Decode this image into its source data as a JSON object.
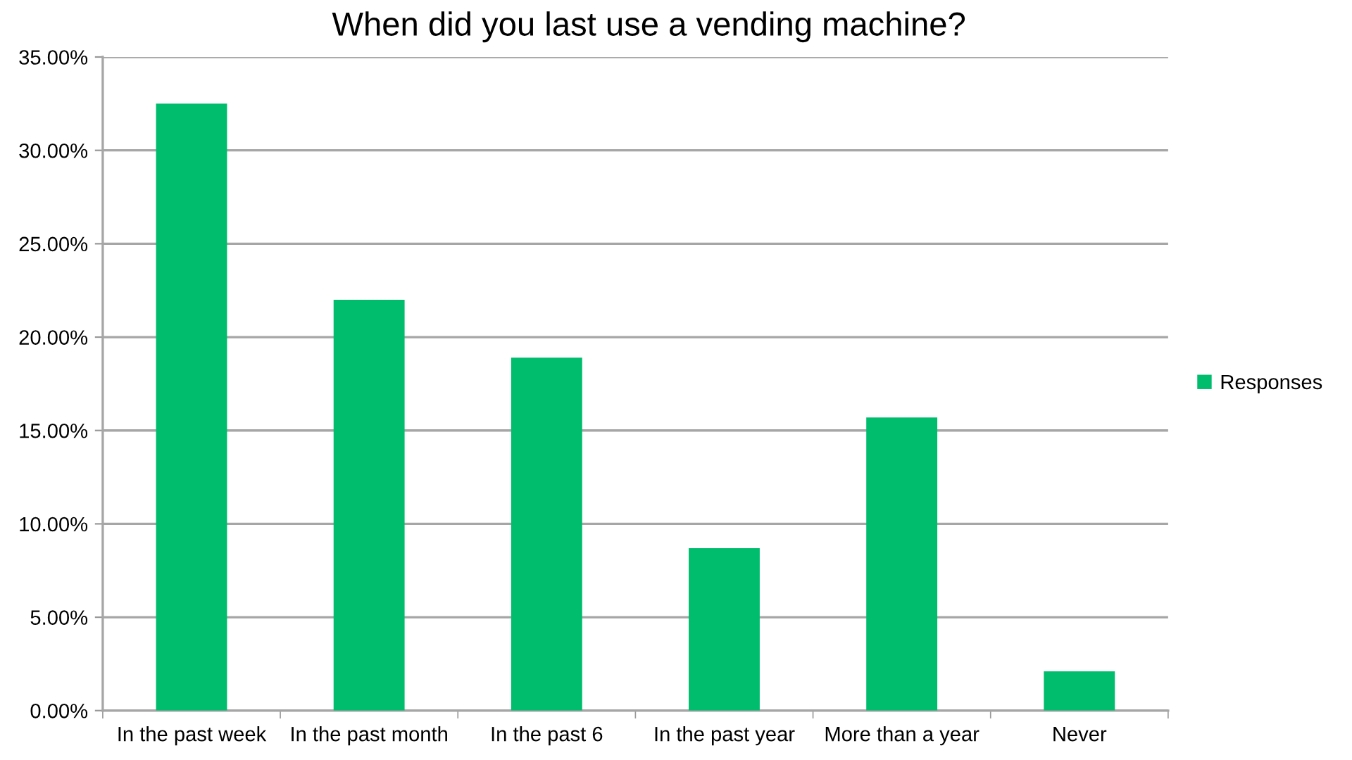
{
  "chart_data": {
    "type": "bar",
    "title": "When did you last use a vending machine?",
    "categories": [
      "In the past week",
      "In the past month",
      "In the past 6",
      "In the past year",
      "More than a year",
      "Never"
    ],
    "series": [
      {
        "name": "Responses",
        "color": "#00bd6e",
        "values": [
          32.5,
          22.0,
          18.9,
          8.7,
          15.7,
          2.1
        ]
      }
    ],
    "ylim": [
      0,
      35
    ],
    "yticks": [
      {
        "value": 0,
        "label": "0.00%"
      },
      {
        "value": 5,
        "label": "5.00%"
      },
      {
        "value": 10,
        "label": "10.00%"
      },
      {
        "value": 15,
        "label": "15.00%"
      },
      {
        "value": 20,
        "label": "20.00%"
      },
      {
        "value": 25,
        "label": "25.00%"
      },
      {
        "value": 30,
        "label": "30.00%"
      },
      {
        "value": 35,
        "label": "35.00%"
      }
    ],
    "grid": "y",
    "legend": "right"
  }
}
